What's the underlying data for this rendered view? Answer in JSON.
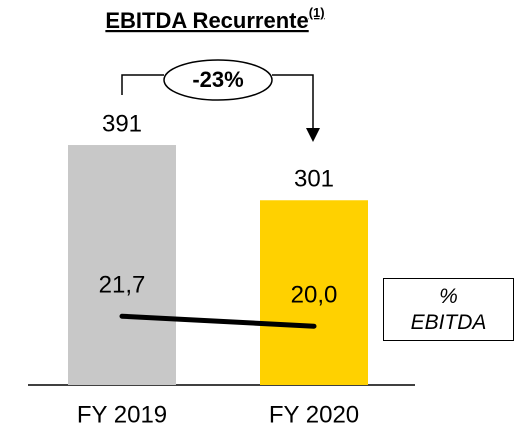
{
  "chart_data": {
    "type": "bar",
    "title": "EBITDA Recurrente",
    "title_note": "(1)",
    "categories": [
      "FY 2019",
      "FY 2020"
    ],
    "series": [
      {
        "values": [
          391,
          301
        ],
        "colors": [
          "#c8c8c8",
          "#ffd100"
        ]
      },
      {
        "name": "% EBITDA",
        "type": "line",
        "axis": "y2",
        "color": "#000000",
        "values": [
          21.7,
          20.0
        ],
        "value_labels": [
          "21,7",
          "20,0"
        ]
      }
    ],
    "annotation": "-23%",
    "ylim": [
      0,
      400
    ],
    "y2lim": [
      10,
      30
    ]
  }
}
